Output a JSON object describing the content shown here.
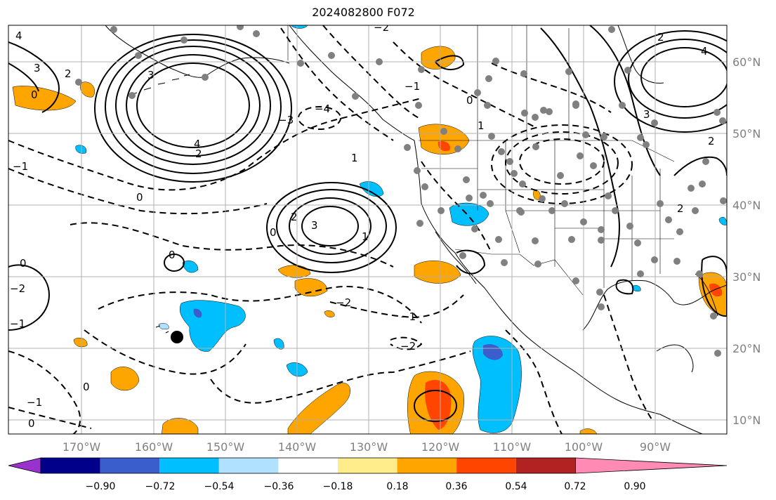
{
  "title": "2024082800 F072",
  "latitude_labels": [
    "60°N",
    "50°N",
    "40°N",
    "30°N",
    "20°N",
    "10°N"
  ],
  "longitude_labels": [
    "170°W",
    "160°W",
    "150°W",
    "140°W",
    "130°W",
    "120°W",
    "110°W",
    "100°W",
    "90°W"
  ],
  "colorbar": {
    "tick_labels": [
      "−0.90",
      "−0.72",
      "−0.54",
      "−0.36",
      "−0.18",
      "0.18",
      "0.36",
      "0.54",
      "0.72",
      "0.90"
    ],
    "colors": [
      "#9932cc",
      "#00008b",
      "#3a5fcd",
      "#00bfff",
      "#b0e2ff",
      "#ffffff",
      "#ffec8b",
      "#ffa500",
      "#ff4500",
      "#b22222",
      "#ff8ab4"
    ]
  },
  "contour_labels": [
    "4",
    "3",
    "2",
    "0",
    "−1",
    "−2",
    "−3",
    "−4",
    "0",
    "1",
    "2",
    "3",
    "4",
    "0",
    "2",
    "3",
    "1",
    "0",
    "−1",
    "−2",
    "0",
    "−1",
    "0",
    "−1",
    "0",
    "−2",
    "2",
    "3",
    "4",
    "2",
    "1",
    "0",
    "−1",
    "−2",
    "2"
  ],
  "colors": {
    "gridline": "#b0b0b0",
    "coastline": "#000000",
    "station": "#808080",
    "contour": "#000000"
  }
}
